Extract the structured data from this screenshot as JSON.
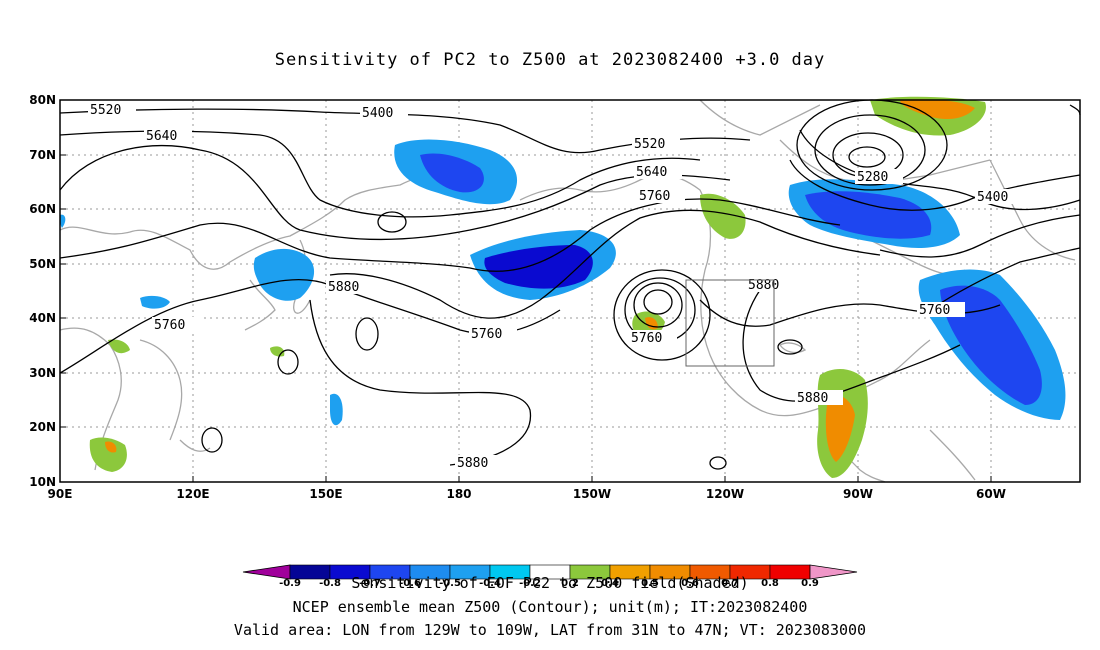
{
  "title": "Sensitivity of PC2 to Z500 at 2023082400 +3.0 day",
  "map": {
    "lat_labels": [
      "80N",
      "70N",
      "60N",
      "50N",
      "40N",
      "30N",
      "20N",
      "10N"
    ],
    "lon_labels": [
      "90E",
      "120E",
      "150E",
      "180",
      "150W",
      "120W",
      "90W",
      "60W"
    ],
    "contour_labels": [
      "5520",
      "5400",
      "5640",
      "5520",
      "5640",
      "5760",
      "5280",
      "5400",
      "5880",
      "5760",
      "5760",
      "5760",
      "5880",
      "5760",
      "5880",
      "5880"
    ],
    "valid_area_box": {
      "lon_from": "129W",
      "lon_to": "109W",
      "lat_from": "31N",
      "lat_to": "47N"
    }
  },
  "colorbar": {
    "tick_labels": [
      "-0.9",
      "-0.8",
      "-0.7",
      "-0.6",
      "-0.5",
      "-0.4",
      "-0.2",
      "0.2",
      "0.4",
      "0.5",
      "0.6",
      "0.7",
      "0.8",
      "0.9"
    ],
    "colors": [
      "#a0009b",
      "#050596",
      "#0a0ad0",
      "#1e46f0",
      "#1e8cf0",
      "#1ea0f0",
      "#00c8f0",
      "#ffffff",
      "#8cc83c",
      "#f0a000",
      "#f08c00",
      "#f05a00",
      "#f02800",
      "#f00000",
      "#f096c8"
    ]
  },
  "captions": {
    "line1": "Sensitivity of EOF PC2 to Z500 field(Shaded)",
    "line2": "NCEP ensemble mean Z500 (Contour); unit(m); IT:2023082400",
    "line3": "Valid area: LON from 129W to 109W, LAT from 31N to 47N; VT: 2023083000"
  }
}
